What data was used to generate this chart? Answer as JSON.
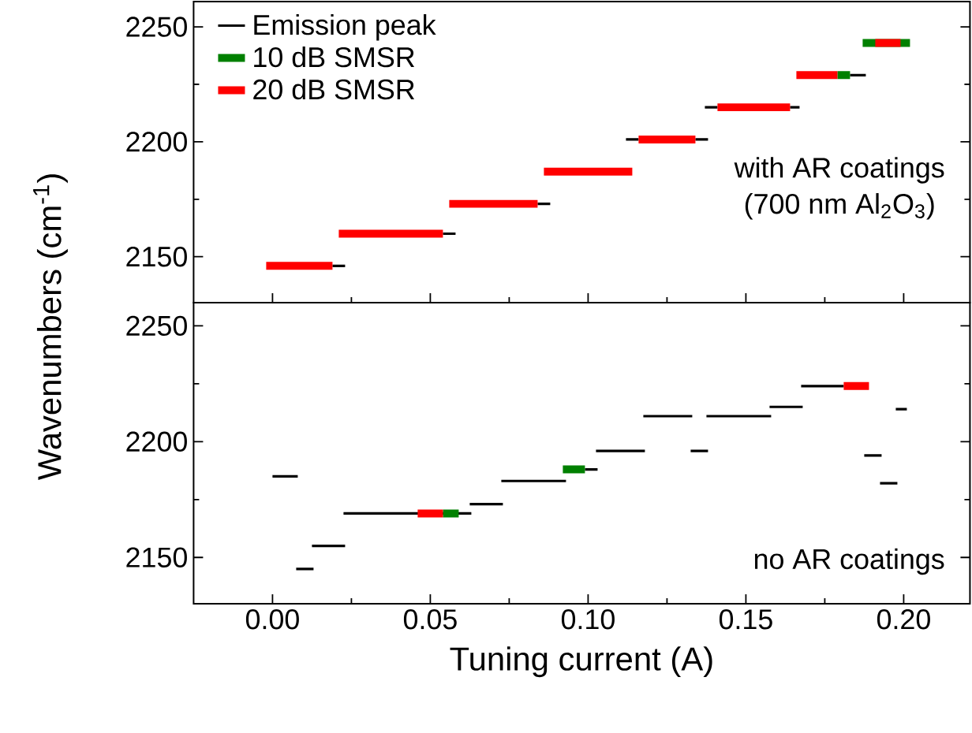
{
  "chart_data": [
    {
      "type": "line",
      "ylabel": "Wavenumbers (cm$^{-1}$)",
      "xlim": [
        -0.025,
        0.221
      ],
      "ylim": [
        2130,
        2261
      ],
      "yticks": [
        2150,
        2200,
        2250
      ],
      "tick_labels": "y",
      "legend": "top left",
      "grid": false,
      "marker": "none",
      "line_style": "solid",
      "annotations": [
        "with AR coatings",
        "(700 nm Al$_{2}$O$_{3}$)"
      ],
      "series": [
        {
          "name": "Emission peak",
          "color": "#000000",
          "x": [
            0.019,
            0.023,
            null,
            0.054,
            0.058,
            null,
            0.084,
            0.088,
            null,
            0.112,
            0.116,
            null,
            0.134,
            0.138,
            null,
            0.137,
            0.141,
            null,
            0.164,
            0.167,
            null,
            0.183,
            0.188
          ],
          "values": [
            2146,
            2146,
            null,
            2160,
            2160,
            null,
            2173,
            2173,
            null,
            2201,
            2201,
            null,
            2201,
            2201,
            null,
            2215,
            2215,
            null,
            2215,
            2215,
            null,
            2229,
            2229
          ]
        },
        {
          "name": "10 dB SMSR",
          "color": "#008000",
          "x": [
            0.179,
            0.183,
            null,
            0.187,
            0.202
          ],
          "values": [
            2229,
            2229,
            null,
            2243,
            2243
          ]
        },
        {
          "name": "20 dB SMSR",
          "color": "#ff0000",
          "x": [
            -0.002,
            0.019,
            null,
            0.021,
            0.054,
            null,
            0.056,
            0.084,
            null,
            0.086,
            0.114,
            null,
            0.116,
            0.134,
            null,
            0.141,
            0.164,
            null,
            0.166,
            0.179,
            null,
            0.191,
            0.199
          ],
          "values": [
            2146,
            2146,
            null,
            2160,
            2160,
            null,
            2173,
            2173,
            null,
            2187,
            2187,
            null,
            2201,
            2201,
            null,
            2215,
            2215,
            null,
            2229,
            2229,
            null,
            2243,
            2243
          ]
        }
      ]
    },
    {
      "type": "line",
      "xlabel": "Tuning current (A)",
      "xlim": [
        -0.025,
        0.221
      ],
      "ylim": [
        2130,
        2260
      ],
      "xticks": [
        {
          "value": 0,
          "label": "0.00"
        },
        0.05,
        {
          "value": 0.1,
          "label": "0.10"
        },
        0.15,
        {
          "value": 0.2,
          "label": "0.20"
        }
      ],
      "yticks": [
        2150,
        2200,
        2250
      ],
      "grid": false,
      "marker": "none",
      "line_style": "solid",
      "annotations": [
        "no AR coatings"
      ],
      "series": [
        {
          "color": "#000000",
          "x": [
            0.0,
            0.008,
            null,
            0.0075,
            0.013,
            null,
            0.0125,
            0.023,
            null,
            0.0225,
            0.063,
            null,
            0.0625,
            0.073,
            null,
            0.0725,
            0.093,
            null,
            0.099,
            0.103,
            null,
            0.1025,
            0.118,
            null,
            0.1175,
            0.133,
            null,
            0.1325,
            0.138,
            null,
            0.1375,
            0.158,
            null,
            0.1575,
            0.168,
            null,
            0.1675,
            0.181,
            null,
            0.1875,
            0.193,
            null,
            0.1925,
            0.198,
            null,
            0.1975,
            0.201
          ],
          "values": [
            2185,
            2185,
            null,
            2145,
            2145,
            null,
            2155,
            2155,
            null,
            2169,
            2169,
            null,
            2173,
            2173,
            null,
            2183,
            2183,
            null,
            2188,
            2188,
            null,
            2196,
            2196,
            null,
            2211,
            2211,
            null,
            2196,
            2196,
            null,
            2211,
            2211,
            null,
            2215,
            2215,
            null,
            2224,
            2224,
            null,
            2194,
            2194,
            null,
            2182,
            2182,
            null,
            2214,
            2214
          ]
        },
        {
          "color": "#008000",
          "x": [
            0.054,
            0.059,
            null,
            0.092,
            0.099
          ],
          "values": [
            2169,
            2169,
            null,
            2188,
            2188
          ]
        },
        {
          "color": "#ff0000",
          "x": [
            0.046,
            0.054,
            null,
            0.181,
            0.189
          ],
          "values": [
            2169,
            2169,
            null,
            2224,
            2224
          ]
        }
      ]
    }
  ]
}
